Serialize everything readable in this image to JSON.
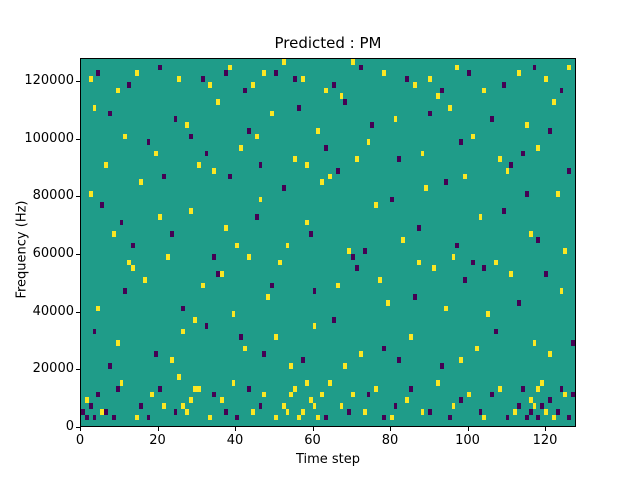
{
  "figure": {
    "title": "Predicted : PM",
    "xlabel": "Time step",
    "ylabel": "Frequency (Hz)"
  },
  "chart_data": {
    "type": "heatmap",
    "title": "Predicted : PM",
    "xlabel": "Time step",
    "ylabel": "Frequency (Hz)",
    "xlim": [
      0,
      128
    ],
    "ylim": [
      0,
      128000
    ],
    "x_ticks": [
      0,
      20,
      40,
      60,
      80,
      100,
      120
    ],
    "y_ticks": [
      0,
      20000,
      40000,
      60000,
      80000,
      100000,
      120000
    ],
    "grid": false,
    "legend": "none",
    "colormap": "viridis",
    "background_value_color": "#1f9c89",
    "high_value_color": "#fbe723",
    "low_value_color": "#440154",
    "time_steps": 128,
    "freq_bins": 64,
    "freq_bin_hz": 2000,
    "yellow_cells": [
      [
        2,
        60
      ],
      [
        14,
        61
      ],
      [
        25,
        60
      ],
      [
        38,
        62
      ],
      [
        44,
        59
      ],
      [
        52,
        63
      ],
      [
        57,
        60
      ],
      [
        63,
        58
      ],
      [
        70,
        63
      ],
      [
        78,
        61
      ],
      [
        90,
        60
      ],
      [
        97,
        62
      ],
      [
        104,
        58
      ],
      [
        113,
        61
      ],
      [
        120,
        60
      ],
      [
        9,
        58
      ],
      [
        33,
        59
      ],
      [
        47,
        61
      ],
      [
        86,
        59
      ],
      [
        126,
        62
      ],
      [
        3,
        55
      ],
      [
        11,
        50
      ],
      [
        19,
        47
      ],
      [
        27,
        52
      ],
      [
        35,
        56
      ],
      [
        41,
        48
      ],
      [
        49,
        54
      ],
      [
        55,
        46
      ],
      [
        61,
        51
      ],
      [
        67,
        57
      ],
      [
        74,
        49
      ],
      [
        81,
        53
      ],
      [
        88,
        47
      ],
      [
        95,
        55
      ],
      [
        101,
        50
      ],
      [
        108,
        46
      ],
      [
        115,
        52
      ],
      [
        122,
        56
      ],
      [
        6,
        45
      ],
      [
        30,
        45
      ],
      [
        58,
        45
      ],
      [
        92,
        57
      ],
      [
        118,
        48
      ],
      [
        45,
        50
      ],
      [
        71,
        46
      ],
      [
        2,
        40
      ],
      [
        8,
        33
      ],
      [
        15,
        42
      ],
      [
        22,
        29
      ],
      [
        28,
        37
      ],
      [
        34,
        44
      ],
      [
        40,
        31
      ],
      [
        46,
        39
      ],
      [
        51,
        28
      ],
      [
        58,
        35
      ],
      [
        64,
        43
      ],
      [
        69,
        30
      ],
      [
        76,
        38
      ],
      [
        83,
        32
      ],
      [
        89,
        41
      ],
      [
        96,
        29
      ],
      [
        103,
        36
      ],
      [
        110,
        44
      ],
      [
        116,
        33
      ],
      [
        123,
        40
      ],
      [
        12,
        28
      ],
      [
        37,
        34
      ],
      [
        62,
        42
      ],
      [
        87,
        28
      ],
      [
        125,
        30
      ],
      [
        20,
        36
      ],
      [
        53,
        31
      ],
      [
        99,
        43
      ],
      [
        107,
        28
      ],
      [
        43,
        29
      ],
      [
        4,
        20
      ],
      [
        9,
        14
      ],
      [
        16,
        25
      ],
      [
        23,
        11
      ],
      [
        29,
        18
      ],
      [
        36,
        26
      ],
      [
        42,
        13
      ],
      [
        48,
        22
      ],
      [
        54,
        10
      ],
      [
        60,
        17
      ],
      [
        66,
        24
      ],
      [
        72,
        12
      ],
      [
        79,
        21
      ],
      [
        85,
        15
      ],
      [
        91,
        27
      ],
      [
        98,
        11
      ],
      [
        105,
        19
      ],
      [
        111,
        26
      ],
      [
        117,
        14
      ],
      [
        124,
        23
      ],
      [
        26,
        16
      ],
      [
        31,
        24
      ],
      [
        68,
        10
      ],
      [
        94,
        20
      ],
      [
        121,
        12
      ],
      [
        13,
        27
      ],
      [
        50,
        15
      ],
      [
        77,
        25
      ],
      [
        102,
        13
      ],
      [
        39,
        19
      ],
      [
        1,
        4
      ],
      [
        5,
        2
      ],
      [
        10,
        7
      ],
      [
        14,
        1
      ],
      [
        18,
        5
      ],
      [
        21,
        3
      ],
      [
        25,
        8
      ],
      [
        27,
        2
      ],
      [
        30,
        6
      ],
      [
        33,
        1
      ],
      [
        36,
        4
      ],
      [
        39,
        7
      ],
      [
        44,
        2
      ],
      [
        47,
        5
      ],
      [
        50,
        1
      ],
      [
        52,
        3
      ],
      [
        55,
        6
      ],
      [
        57,
        2
      ],
      [
        59,
        4
      ],
      [
        61,
        1
      ],
      [
        64,
        7
      ],
      [
        67,
        3
      ],
      [
        70,
        5
      ],
      [
        73,
        2
      ],
      [
        76,
        6
      ],
      [
        80,
        1
      ],
      [
        84,
        4
      ],
      [
        88,
        2
      ],
      [
        92,
        7
      ],
      [
        96,
        3
      ],
      [
        100,
        5
      ],
      [
        104,
        1
      ],
      [
        108,
        6
      ],
      [
        112,
        2
      ],
      [
        116,
        4
      ],
      [
        119,
        7
      ],
      [
        122,
        1
      ],
      [
        125,
        5
      ],
      [
        28,
        4
      ],
      [
        29,
        6
      ],
      [
        26,
        3
      ],
      [
        53,
        2
      ],
      [
        54,
        5
      ],
      [
        56,
        1
      ],
      [
        58,
        7
      ],
      [
        60,
        3
      ],
      [
        62,
        5
      ],
      [
        117,
        3
      ],
      [
        118,
        6
      ],
      [
        120,
        2
      ]
    ],
    "purple_cells": [
      [
        4,
        61
      ],
      [
        12,
        59
      ],
      [
        20,
        62
      ],
      [
        31,
        60
      ],
      [
        42,
        58
      ],
      [
        50,
        61
      ],
      [
        65,
        59
      ],
      [
        72,
        62
      ],
      [
        84,
        60
      ],
      [
        93,
        58
      ],
      [
        100,
        61
      ],
      [
        109,
        59
      ],
      [
        117,
        62
      ],
      [
        124,
        58
      ],
      [
        55,
        60
      ],
      [
        37,
        61
      ],
      [
        7,
        54
      ],
      [
        17,
        49
      ],
      [
        24,
        53
      ],
      [
        32,
        47
      ],
      [
        43,
        51
      ],
      [
        56,
        55
      ],
      [
        63,
        48
      ],
      [
        75,
        52
      ],
      [
        82,
        46
      ],
      [
        90,
        54
      ],
      [
        98,
        49
      ],
      [
        106,
        53
      ],
      [
        114,
        47
      ],
      [
        121,
        51
      ],
      [
        28,
        50
      ],
      [
        68,
        56
      ],
      [
        46,
        45
      ],
      [
        111,
        45
      ],
      [
        5,
        38
      ],
      [
        13,
        31
      ],
      [
        21,
        43
      ],
      [
        34,
        29
      ],
      [
        45,
        36
      ],
      [
        52,
        41
      ],
      [
        59,
        33
      ],
      [
        66,
        44
      ],
      [
        73,
        30
      ],
      [
        80,
        39
      ],
      [
        87,
        34
      ],
      [
        94,
        42
      ],
      [
        101,
        28
      ],
      [
        109,
        37
      ],
      [
        118,
        32
      ],
      [
        126,
        44
      ],
      [
        10,
        35
      ],
      [
        38,
        43
      ],
      [
        70,
        29
      ],
      [
        97,
        31
      ],
      [
        115,
        40
      ],
      [
        23,
        33
      ],
      [
        3,
        16
      ],
      [
        11,
        23
      ],
      [
        19,
        12
      ],
      [
        26,
        20
      ],
      [
        35,
        26
      ],
      [
        41,
        15
      ],
      [
        49,
        24
      ],
      [
        57,
        11
      ],
      [
        65,
        18
      ],
      [
        71,
        27
      ],
      [
        78,
        13
      ],
      [
        86,
        22
      ],
      [
        93,
        10
      ],
      [
        99,
        25
      ],
      [
        107,
        16
      ],
      [
        113,
        21
      ],
      [
        120,
        26
      ],
      [
        127,
        14
      ],
      [
        7,
        10
      ],
      [
        32,
        17
      ],
      [
        60,
        23
      ],
      [
        82,
        11
      ],
      [
        104,
        27
      ],
      [
        47,
        12
      ],
      [
        0,
        2
      ],
      [
        1,
        1
      ],
      [
        2,
        3
      ],
      [
        3,
        1
      ],
      [
        4,
        5
      ],
      [
        6,
        2
      ],
      [
        8,
        1
      ],
      [
        9,
        6
      ],
      [
        15,
        3
      ],
      [
        17,
        1
      ],
      [
        20,
        6
      ],
      [
        24,
        2
      ],
      [
        34,
        5
      ],
      [
        37,
        2
      ],
      [
        40,
        1
      ],
      [
        43,
        6
      ],
      [
        46,
        3
      ],
      [
        63,
        1
      ],
      [
        69,
        2
      ],
      [
        74,
        5
      ],
      [
        78,
        1
      ],
      [
        81,
        3
      ],
      [
        85,
        6
      ],
      [
        90,
        2
      ],
      [
        95,
        1
      ],
      [
        98,
        4
      ],
      [
        103,
        2
      ],
      [
        106,
        5
      ],
      [
        110,
        1
      ],
      [
        113,
        3
      ],
      [
        114,
        6
      ],
      [
        115,
        1
      ],
      [
        116,
        2
      ],
      [
        121,
        4
      ],
      [
        123,
        2
      ],
      [
        126,
        1
      ],
      [
        127,
        5
      ],
      [
        118,
        1
      ],
      [
        119,
        3
      ],
      [
        124,
        6
      ]
    ]
  }
}
